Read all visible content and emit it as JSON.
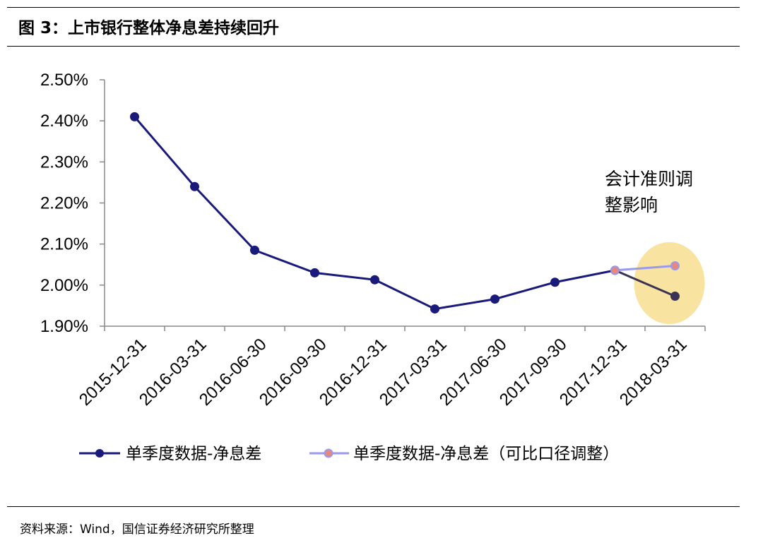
{
  "header": {
    "title": "图 3：上市银行整体净息差持续回升"
  },
  "footer": {
    "source": "资料来源：Wind，国信证券经济研究所整理"
  },
  "chart_data": {
    "type": "line",
    "categories": [
      "2015-12-31",
      "2016-03-31",
      "2016-06-30",
      "2016-09-30",
      "2016-12-31",
      "2017-03-31",
      "2017-06-30",
      "2017-09-30",
      "2017-12-31",
      "2018-03-31"
    ],
    "ylim": [
      1.9,
      2.5
    ],
    "y_ticks": [
      1.9,
      2.0,
      2.1,
      2.2,
      2.3,
      2.4,
      2.5
    ],
    "y_tick_labels": [
      "1.90%",
      "2.00%",
      "2.10%",
      "2.20%",
      "2.30%",
      "2.40%",
      "2.50%"
    ],
    "grid": false,
    "legend_position": "bottom",
    "series": [
      {
        "name": "单季度数据-净息差",
        "color": "#1a1a7a",
        "values": [
          2.41,
          2.24,
          2.085,
          2.03,
          2.013,
          1.942,
          1.966,
          2.007,
          2.036,
          1.973
        ]
      },
      {
        "name": "单季度数据-净息差（可比口径调整）",
        "color": "#9999ee",
        "marker_fill": "#e8877a",
        "values": [
          null,
          null,
          null,
          null,
          null,
          null,
          null,
          null,
          2.036,
          2.047
        ]
      }
    ],
    "annotation": {
      "lines": [
        "会计准则调",
        "整影响"
      ],
      "highlight_color": "#f8e3a0"
    }
  }
}
